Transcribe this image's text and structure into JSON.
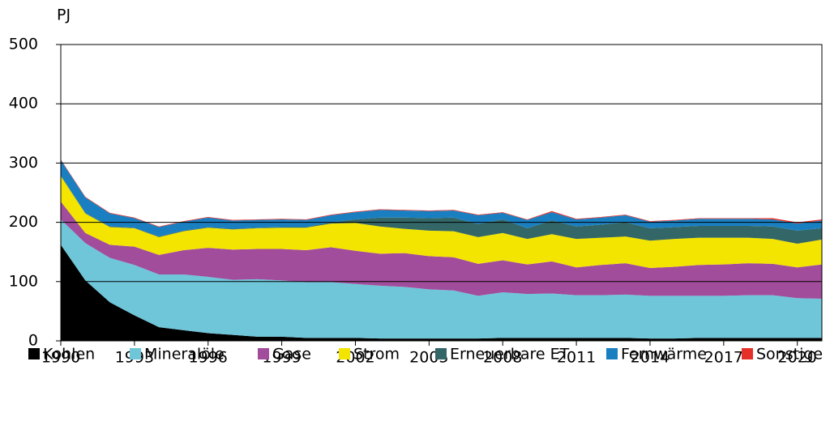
{
  "chart_data": {
    "type": "stacked_area",
    "y_label": "PJ",
    "x": [
      1990,
      1991,
      1992,
      1993,
      1994,
      1995,
      1996,
      1997,
      1998,
      1999,
      2000,
      2001,
      2002,
      2003,
      2004,
      2005,
      2006,
      2007,
      2008,
      2009,
      2010,
      2011,
      2012,
      2013,
      2014,
      2015,
      2016,
      2017,
      2018,
      2019,
      2020,
      2021
    ],
    "xlim": [
      1990,
      2021
    ],
    "xticks": [
      1990,
      1993,
      1996,
      1999,
      2002,
      2005,
      2008,
      2011,
      2014,
      2017,
      2020
    ],
    "ylim": [
      0,
      500
    ],
    "yticks": [
      0,
      100,
      200,
      300,
      400,
      500
    ],
    "grid": true,
    "series": [
      {
        "name": "Kohlen",
        "color": "#000000",
        "values": [
          162,
          102,
          65,
          43,
          23,
          18,
          13,
          10,
          7,
          7,
          5,
          5,
          5,
          4,
          4,
          4,
          4,
          4,
          5,
          5,
          5,
          5,
          5,
          5,
          4,
          4,
          5,
          5,
          5,
          5,
          5,
          5
        ]
      },
      {
        "name": "Mineralöle",
        "color": "#6ec6d8",
        "values": [
          43,
          63,
          75,
          85,
          89,
          94,
          95,
          93,
          97,
          95,
          94,
          94,
          91,
          89,
          87,
          83,
          81,
          72,
          77,
          74,
          75,
          72,
          72,
          73,
          72,
          72,
          71,
          71,
          72,
          72,
          67,
          66
        ]
      },
      {
        "name": "Gase",
        "color": "#a24c9c",
        "values": [
          30,
          17,
          22,
          31,
          33,
          41,
          49,
          51,
          51,
          53,
          54,
          59,
          56,
          54,
          57,
          56,
          56,
          54,
          54,
          50,
          54,
          47,
          51,
          53,
          47,
          49,
          52,
          53,
          54,
          53,
          52,
          58
        ]
      },
      {
        "name": "Strom",
        "color": "#f3e500",
        "values": [
          43,
          33,
          30,
          31,
          30,
          32,
          34,
          34,
          35,
          36,
          38,
          40,
          47,
          46,
          41,
          43,
          44,
          45,
          46,
          43,
          46,
          48,
          46,
          45,
          46,
          47,
          46,
          45,
          43,
          42,
          40,
          42
        ]
      },
      {
        "name": "Erneuerbare ET",
        "color": "#336666",
        "values": [
          1,
          1,
          1,
          1,
          1,
          1,
          1,
          1,
          1,
          1,
          1,
          2,
          6,
          15,
          19,
          21,
          23,
          22,
          23,
          18,
          23,
          21,
          22,
          24,
          21,
          20,
          20,
          20,
          20,
          21,
          22,
          19
        ]
      },
      {
        "name": "Fernwärme",
        "color": "#1a7fc1",
        "values": [
          26,
          26,
          22,
          16,
          16,
          15,
          16,
          14,
          13,
          13,
          12,
          12,
          12,
          13,
          12,
          12,
          12,
          15,
          11,
          14,
          14,
          12,
          12,
          12,
          11,
          11,
          12,
          12,
          12,
          12,
          12,
          13
        ]
      },
      {
        "name": "Sonstige",
        "color": "#e5302a",
        "values": [
          1,
          1,
          1,
          1,
          1,
          1,
          1,
          1,
          1,
          1,
          1,
          1,
          1,
          1,
          1,
          1,
          1,
          1,
          1,
          1,
          2,
          1,
          1,
          1,
          1,
          1,
          1,
          1,
          1,
          2,
          2,
          2
        ]
      }
    ]
  }
}
